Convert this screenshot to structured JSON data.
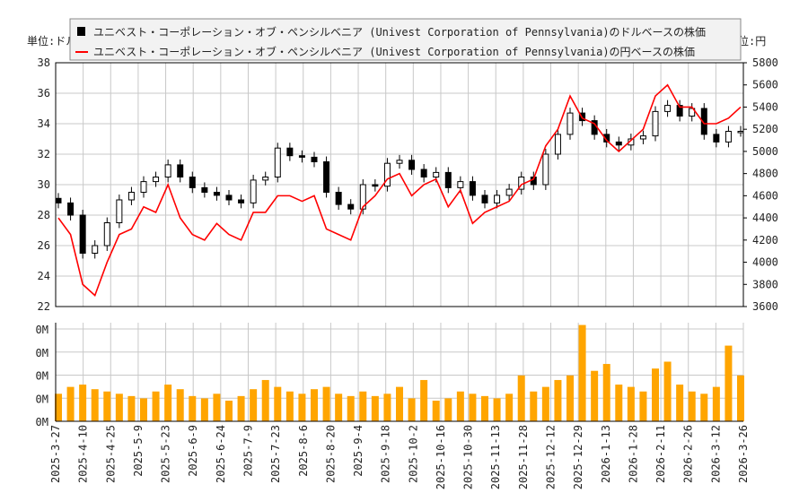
{
  "chart_data": [
    {
      "type": "candlestick+line",
      "legend": {
        "placement": "top",
        "usd_label": "ユニベスト・コーポレーション・オブ・ペンシルベニア (Univest Corporation of Pennsylvania)のドルベースの株価",
        "jpy_label": "ユニベスト・コーポレーション・オブ・ペンシルベニア (Univest Corporation of Pennsylvania)の円ベースの株価"
      },
      "left_unit": "単位:ドル",
      "right_unit": "単位:円",
      "ylim_left": [
        22,
        38
      ],
      "yticks_left": [
        "38",
        "36",
        "34",
        "32",
        "30",
        "28",
        "26",
        "24",
        "22"
      ],
      "ylim_right": [
        3600,
        5800
      ],
      "yticks_right": [
        "5800",
        "5600",
        "5400",
        "5200",
        "5000",
        "4800",
        "4600",
        "4400",
        "4200",
        "4000",
        "3800",
        "3600"
      ],
      "grid": true,
      "colors": {
        "usd": "#000000",
        "jpy": "#ff0000",
        "volume": "#ffa500",
        "grid": "#c8c8c8"
      },
      "usd_close": [
        28.8,
        28.0,
        25.5,
        26.0,
        27.5,
        29.0,
        29.5,
        30.2,
        30.5,
        31.3,
        30.5,
        29.8,
        29.5,
        29.3,
        29.0,
        28.8,
        30.3,
        30.5,
        32.4,
        31.9,
        31.8,
        31.5,
        29.5,
        28.7,
        28.4,
        30.0,
        29.9,
        31.4,
        31.6,
        31.0,
        30.5,
        30.8,
        29.8,
        30.2,
        29.3,
        28.8,
        29.3,
        29.7,
        30.5,
        30.0,
        32.0,
        33.3,
        34.7,
        34.2,
        33.3,
        32.8,
        32.6,
        33.0,
        33.2,
        34.8,
        35.2,
        34.5,
        35.0,
        33.3,
        32.8,
        33.5,
        33.5
      ],
      "jpy_close": [
        4400,
        4250,
        3800,
        3700,
        4000,
        4250,
        4300,
        4500,
        4450,
        4700,
        4400,
        4250,
        4200,
        4350,
        4250,
        4200,
        4450,
        4450,
        4600,
        4600,
        4550,
        4600,
        4300,
        4250,
        4200,
        4500,
        4600,
        4750,
        4800,
        4600,
        4700,
        4750,
        4500,
        4650,
        4350,
        4450,
        4500,
        4550,
        4700,
        4750,
        5050,
        5200,
        5500,
        5300,
        5250,
        5100,
        5000,
        5100,
        5200,
        5500,
        5600,
        5400,
        5400,
        5250,
        5250,
        5300,
        5400
      ]
    },
    {
      "type": "bar",
      "ylim": [
        0,
        4.3
      ],
      "yticks": [
        "0M",
        "0M",
        "0M",
        "0M",
        "0M"
      ],
      "xticks": [
        "2025-3-27",
        "2025-4-10",
        "2025-4-25",
        "2025-5-9",
        "2025-5-23",
        "2025-6-9",
        "2025-6-24",
        "2025-7-9",
        "2025-7-23",
        "2025-8-6",
        "2025-8-20",
        "2025-9-4",
        "2025-9-18",
        "2025-10-2",
        "2025-10-16",
        "2025-10-30",
        "2025-11-13",
        "2025-11-28",
        "2025-12-12",
        "2025-12-29",
        "2026-1-13",
        "2026-1-28",
        "2026-2-11",
        "2026-2-26",
        "2026-3-12",
        "2026-3-26"
      ],
      "values": [
        1.2,
        1.5,
        1.6,
        1.4,
        1.3,
        1.2,
        1.1,
        1.0,
        1.3,
        1.6,
        1.4,
        1.1,
        1.0,
        1.2,
        0.9,
        1.1,
        1.4,
        1.8,
        1.5,
        1.3,
        1.2,
        1.4,
        1.5,
        1.2,
        1.1,
        1.3,
        1.1,
        1.2,
        1.5,
        1.0,
        1.8,
        0.9,
        1.0,
        1.3,
        1.2,
        1.1,
        1.0,
        1.2,
        2.0,
        1.3,
        1.5,
        1.8,
        2.0,
        4.2,
        2.2,
        2.5,
        1.6,
        1.5,
        1.3,
        2.3,
        2.6,
        1.6,
        1.3,
        1.2,
        1.5,
        3.3,
        2.0
      ]
    }
  ]
}
